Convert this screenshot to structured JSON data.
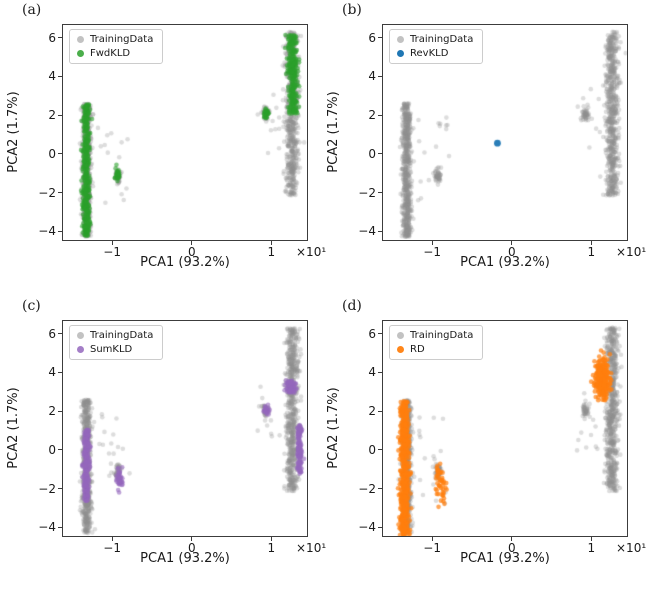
{
  "figure_bg": "#ffffff",
  "chart_data": [
    {
      "type": "scatter",
      "title": "(a)",
      "xlabel": "PCA1 (93.2%)",
      "ylabel": "PCA2 (1.7%)",
      "x_offset_text": "×10¹",
      "xlim": [
        -1.63,
        1.46
      ],
      "ylim": [
        -4.5,
        6.7
      ],
      "x_ticks": [
        -1,
        0,
        1
      ],
      "y_ticks": [
        -4,
        -2,
        0,
        2,
        4,
        6
      ],
      "grid": false,
      "legend_position": "upper left",
      "series": [
        {
          "name": "TrainingData",
          "color": "#8f8f8f",
          "alpha": 0.3,
          "size": 2.3,
          "clusters": [
            {
              "shape": "band",
              "cx": -1.32,
              "sx": 0.028,
              "y0": -4.3,
              "y1": 2.6,
              "n": 650
            },
            {
              "shape": "blob",
              "cx": -0.93,
              "cy": -1.15,
              "sx": 0.02,
              "sy": 0.2,
              "n": 45
            },
            {
              "shape": "uniform",
              "x0": -1.18,
              "x1": -0.78,
              "y0": -2.9,
              "y1": 1.9,
              "n": 16
            },
            {
              "shape": "band",
              "cx": 1.26,
              "sx": 0.04,
              "y0": -2.15,
              "y1": 6.3,
              "n": 650
            },
            {
              "shape": "blob",
              "cx": 0.93,
              "cy": 2.05,
              "sx": 0.02,
              "sy": 0.16,
              "n": 40
            },
            {
              "shape": "uniform",
              "x0": 0.82,
              "x1": 1.12,
              "y0": -0.2,
              "y1": 3.4,
              "n": 12
            }
          ]
        },
        {
          "name": "FwdKLD",
          "color": "#2ca02c",
          "alpha": 0.6,
          "size": 2.3,
          "clusters": [
            {
              "shape": "band",
              "cx": -1.325,
              "sx": 0.022,
              "y0": -4.25,
              "y1": 2.55,
              "n": 380
            },
            {
              "shape": "blob",
              "cx": -0.93,
              "cy": -1.12,
              "sx": 0.018,
              "sy": 0.16,
              "n": 30
            },
            {
              "shape": "band",
              "cx": 1.27,
              "sx": 0.032,
              "y0": 2.05,
              "y1": 6.15,
              "n": 260
            },
            {
              "shape": "blob",
              "cx": 0.93,
              "cy": 2.05,
              "sx": 0.018,
              "sy": 0.13,
              "n": 28
            }
          ]
        }
      ]
    },
    {
      "type": "scatter",
      "title": "(b)",
      "xlabel": "PCA1 (93.2%)",
      "ylabel": "PCA2 (1.7%)",
      "x_offset_text": "×10¹",
      "xlim": [
        -1.63,
        1.46
      ],
      "ylim": [
        -4.5,
        6.7
      ],
      "x_ticks": [
        -1,
        0,
        1
      ],
      "y_ticks": [
        -4,
        -2,
        0,
        2,
        4,
        6
      ],
      "grid": false,
      "legend_position": "upper left",
      "series": [
        {
          "name": "TrainingData",
          "color": "#8f8f8f",
          "alpha": 0.3,
          "size": 2.3,
          "clusters": [
            {
              "shape": "band",
              "cx": -1.32,
              "sx": 0.028,
              "y0": -4.3,
              "y1": 2.6,
              "n": 650
            },
            {
              "shape": "blob",
              "cx": -0.93,
              "cy": -1.15,
              "sx": 0.02,
              "sy": 0.2,
              "n": 45
            },
            {
              "shape": "uniform",
              "x0": -1.18,
              "x1": -0.78,
              "y0": -2.9,
              "y1": 1.9,
              "n": 16
            },
            {
              "shape": "band",
              "cx": 1.26,
              "sx": 0.04,
              "y0": -2.15,
              "y1": 6.3,
              "n": 650
            },
            {
              "shape": "blob",
              "cx": 0.93,
              "cy": 2.05,
              "sx": 0.02,
              "sy": 0.16,
              "n": 40
            },
            {
              "shape": "uniform",
              "x0": 0.82,
              "x1": 1.12,
              "y0": -0.2,
              "y1": 3.4,
              "n": 12
            }
          ]
        },
        {
          "name": "RevKLD",
          "color": "#1f77b4",
          "alpha": 0.95,
          "size": 3.4,
          "clusters": [
            {
              "shape": "point",
              "cx": -0.18,
              "cy": 0.55,
              "n": 1
            }
          ]
        }
      ]
    },
    {
      "type": "scatter",
      "title": "(c)",
      "xlabel": "PCA1 (93.2%)",
      "ylabel": "PCA2 (1.7%)",
      "x_offset_text": "×10¹",
      "xlim": [
        -1.63,
        1.46
      ],
      "ylim": [
        -4.5,
        6.7
      ],
      "x_ticks": [
        -1,
        0,
        1
      ],
      "y_ticks": [
        -4,
        -2,
        0,
        2,
        4,
        6
      ],
      "grid": false,
      "legend_position": "upper left",
      "series": [
        {
          "name": "TrainingData",
          "color": "#8f8f8f",
          "alpha": 0.3,
          "size": 2.3,
          "clusters": [
            {
              "shape": "band",
              "cx": -1.32,
              "sx": 0.028,
              "y0": -4.3,
              "y1": 2.6,
              "n": 650
            },
            {
              "shape": "blob",
              "cx": -0.93,
              "cy": -1.15,
              "sx": 0.02,
              "sy": 0.2,
              "n": 45
            },
            {
              "shape": "uniform",
              "x0": -1.18,
              "x1": -0.78,
              "y0": -2.9,
              "y1": 1.9,
              "n": 16
            },
            {
              "shape": "band",
              "cx": 1.26,
              "sx": 0.04,
              "y0": -2.15,
              "y1": 6.3,
              "n": 650
            },
            {
              "shape": "blob",
              "cx": 0.93,
              "cy": 2.05,
              "sx": 0.02,
              "sy": 0.16,
              "n": 40
            },
            {
              "shape": "uniform",
              "x0": 0.82,
              "x1": 1.12,
              "y0": -0.2,
              "y1": 3.4,
              "n": 12
            }
          ]
        },
        {
          "name": "SumKLD",
          "color": "#9467bd",
          "alpha": 0.6,
          "size": 2.3,
          "clusters": [
            {
              "shape": "band",
              "cx": -1.325,
              "sx": 0.02,
              "y0": -2.65,
              "y1": 1.05,
              "n": 240
            },
            {
              "shape": "blob",
              "cx": -0.91,
              "cy": -1.6,
              "sx": 0.02,
              "sy": 0.28,
              "n": 40
            },
            {
              "shape": "band",
              "cx": 1.355,
              "sx": 0.016,
              "y0": -1.25,
              "y1": 1.3,
              "n": 140
            },
            {
              "shape": "band",
              "cx": 1.24,
              "sx": 0.03,
              "y0": 2.95,
              "y1": 3.6,
              "n": 70
            },
            {
              "shape": "blob",
              "cx": 0.93,
              "cy": 2.0,
              "sx": 0.018,
              "sy": 0.13,
              "n": 26
            }
          ]
        }
      ]
    },
    {
      "type": "scatter",
      "title": "(d)",
      "xlabel": "PCA1 (93.2%)",
      "ylabel": "PCA2 (1.7%)",
      "x_offset_text": "×10¹",
      "xlim": [
        -1.63,
        1.46
      ],
      "ylim": [
        -4.5,
        6.7
      ],
      "x_ticks": [
        -1,
        0,
        1
      ],
      "y_ticks": [
        -4,
        -2,
        0,
        2,
        4,
        6
      ],
      "grid": false,
      "legend_position": "upper left",
      "series": [
        {
          "name": "TrainingData",
          "color": "#8f8f8f",
          "alpha": 0.3,
          "size": 2.3,
          "clusters": [
            {
              "shape": "band",
              "cx": -1.32,
              "sx": 0.028,
              "y0": -4.3,
              "y1": 2.6,
              "n": 650
            },
            {
              "shape": "blob",
              "cx": -0.93,
              "cy": -1.15,
              "sx": 0.02,
              "sy": 0.2,
              "n": 45
            },
            {
              "shape": "uniform",
              "x0": -1.18,
              "x1": -0.78,
              "y0": -2.9,
              "y1": 1.9,
              "n": 16
            },
            {
              "shape": "band",
              "cx": 1.26,
              "sx": 0.04,
              "y0": -2.15,
              "y1": 6.3,
              "n": 650
            },
            {
              "shape": "blob",
              "cx": 0.93,
              "cy": 2.05,
              "sx": 0.02,
              "sy": 0.16,
              "n": 40
            },
            {
              "shape": "uniform",
              "x0": 0.82,
              "x1": 1.12,
              "y0": -0.2,
              "y1": 3.4,
              "n": 12
            }
          ]
        },
        {
          "name": "RD",
          "color": "#ff7f0e",
          "alpha": 0.7,
          "size": 2.3,
          "clusters": [
            {
              "shape": "band",
              "cx": -1.345,
              "sx": 0.03,
              "y0": -4.45,
              "y1": 2.5,
              "n": 520
            },
            {
              "shape": "blob",
              "cx": -0.92,
              "cy": -1.25,
              "sx": 0.02,
              "sy": 0.2,
              "n": 18
            },
            {
              "shape": "blob",
              "cx": -0.88,
              "cy": -2.1,
              "sx": 0.035,
              "sy": 0.55,
              "n": 30
            },
            {
              "shape": "blob",
              "cx": 1.14,
              "cy": 3.65,
              "sx": 0.045,
              "sy": 0.48,
              "n": 280
            }
          ]
        }
      ]
    }
  ]
}
